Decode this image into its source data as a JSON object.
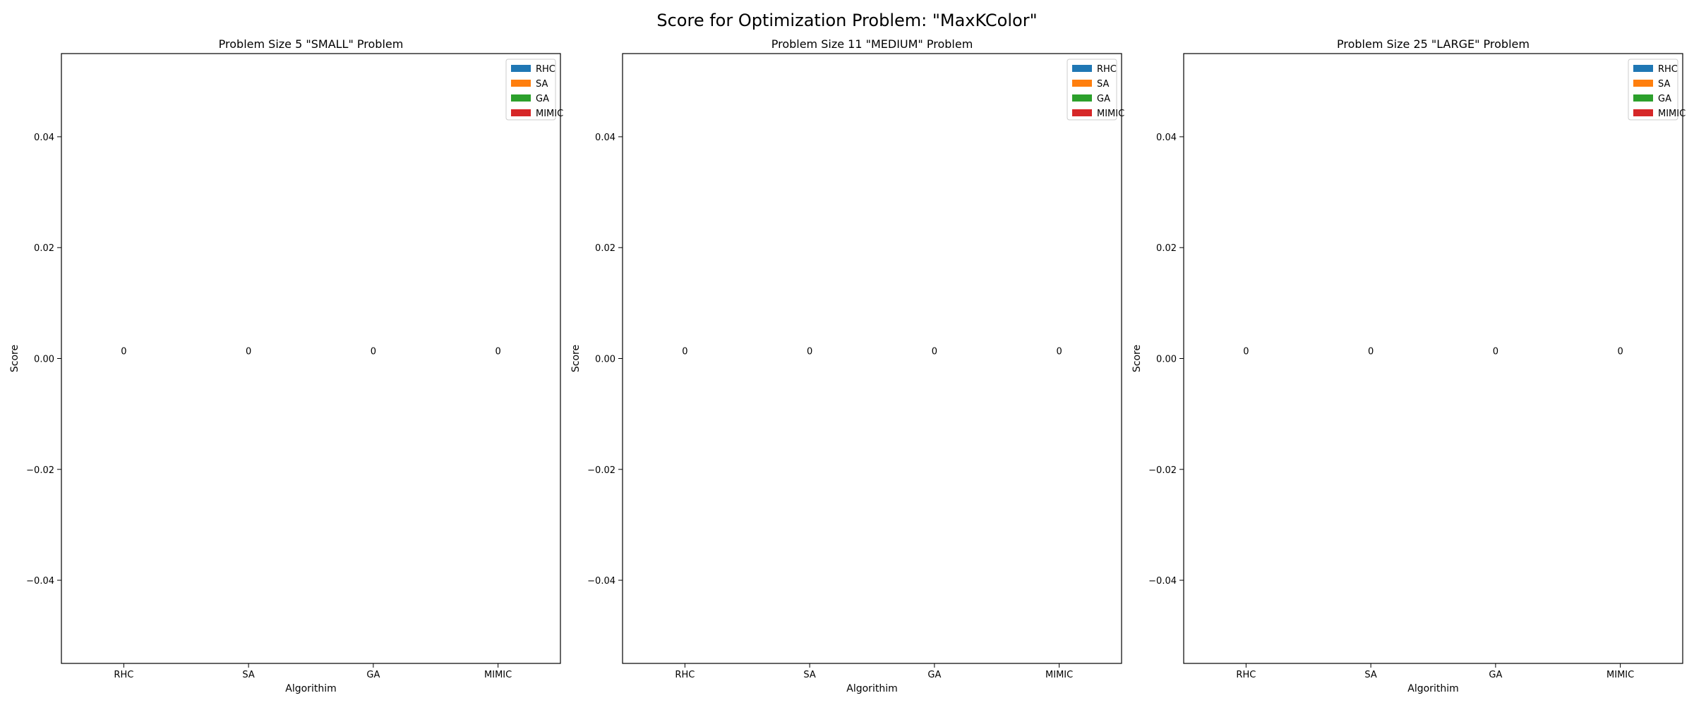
{
  "figure": {
    "suptitle": "Score for Optimization Problem: \"MaxKColor\""
  },
  "chart_data": [
    {
      "type": "bar",
      "title": "Problem Size 5 \"SMALL\" Problem",
      "xlabel": "Algorithim",
      "ylabel": "Score",
      "categories": [
        "RHC",
        "SA",
        "GA",
        "MIMIC"
      ],
      "series": [
        {
          "name": "RHC",
          "values": [
            0,
            null,
            null,
            null
          ],
          "color": "#1f77b4"
        },
        {
          "name": "SA",
          "values": [
            null,
            0,
            null,
            null
          ],
          "color": "#ff7f0e"
        },
        {
          "name": "GA",
          "values": [
            null,
            null,
            0,
            null
          ],
          "color": "#2ca02c"
        },
        {
          "name": "MIMIC",
          "values": [
            null,
            null,
            null,
            0
          ],
          "color": "#d62728"
        }
      ],
      "data_labels": [
        "0",
        "0",
        "0",
        "0"
      ],
      "ylim": [
        -0.055,
        0.055
      ],
      "yticks": [
        -0.04,
        -0.02,
        0.0,
        0.02,
        0.04
      ],
      "ytick_labels": [
        "−0.04",
        "−0.02",
        "0.00",
        "0.02",
        "0.04"
      ],
      "grid": false,
      "legend_position": "top-right"
    },
    {
      "type": "bar",
      "title": "Problem Size 11 \"MEDIUM\" Problem",
      "xlabel": "Algorithim",
      "ylabel": "Score",
      "categories": [
        "RHC",
        "SA",
        "GA",
        "MIMIC"
      ],
      "series": [
        {
          "name": "RHC",
          "values": [
            0,
            null,
            null,
            null
          ],
          "color": "#1f77b4"
        },
        {
          "name": "SA",
          "values": [
            null,
            0,
            null,
            null
          ],
          "color": "#ff7f0e"
        },
        {
          "name": "GA",
          "values": [
            null,
            null,
            0,
            null
          ],
          "color": "#2ca02c"
        },
        {
          "name": "MIMIC",
          "values": [
            null,
            null,
            null,
            0
          ],
          "color": "#d62728"
        }
      ],
      "data_labels": [
        "0",
        "0",
        "0",
        "0"
      ],
      "ylim": [
        -0.055,
        0.055
      ],
      "yticks": [
        -0.04,
        -0.02,
        0.0,
        0.02,
        0.04
      ],
      "ytick_labels": [
        "−0.04",
        "−0.02",
        "0.00",
        "0.02",
        "0.04"
      ],
      "grid": false,
      "legend_position": "top-right"
    },
    {
      "type": "bar",
      "title": "Problem Size 25 \"LARGE\" Problem",
      "xlabel": "Algorithim",
      "ylabel": "Score",
      "categories": [
        "RHC",
        "SA",
        "GA",
        "MIMIC"
      ],
      "series": [
        {
          "name": "RHC",
          "values": [
            0,
            null,
            null,
            null
          ],
          "color": "#1f77b4"
        },
        {
          "name": "SA",
          "values": [
            null,
            0,
            null,
            null
          ],
          "color": "#ff7f0e"
        },
        {
          "name": "GA",
          "values": [
            null,
            null,
            0,
            null
          ],
          "color": "#2ca02c"
        },
        {
          "name": "MIMIC",
          "values": [
            null,
            null,
            null,
            0
          ],
          "color": "#d62728"
        }
      ],
      "data_labels": [
        "0",
        "0",
        "0",
        "0"
      ],
      "ylim": [
        -0.055,
        0.055
      ],
      "yticks": [
        -0.04,
        -0.02,
        0.0,
        0.02,
        0.04
      ],
      "ytick_labels": [
        "−0.04",
        "−0.02",
        "0.00",
        "0.02",
        "0.04"
      ],
      "grid": false,
      "legend_position": "top-right"
    }
  ]
}
